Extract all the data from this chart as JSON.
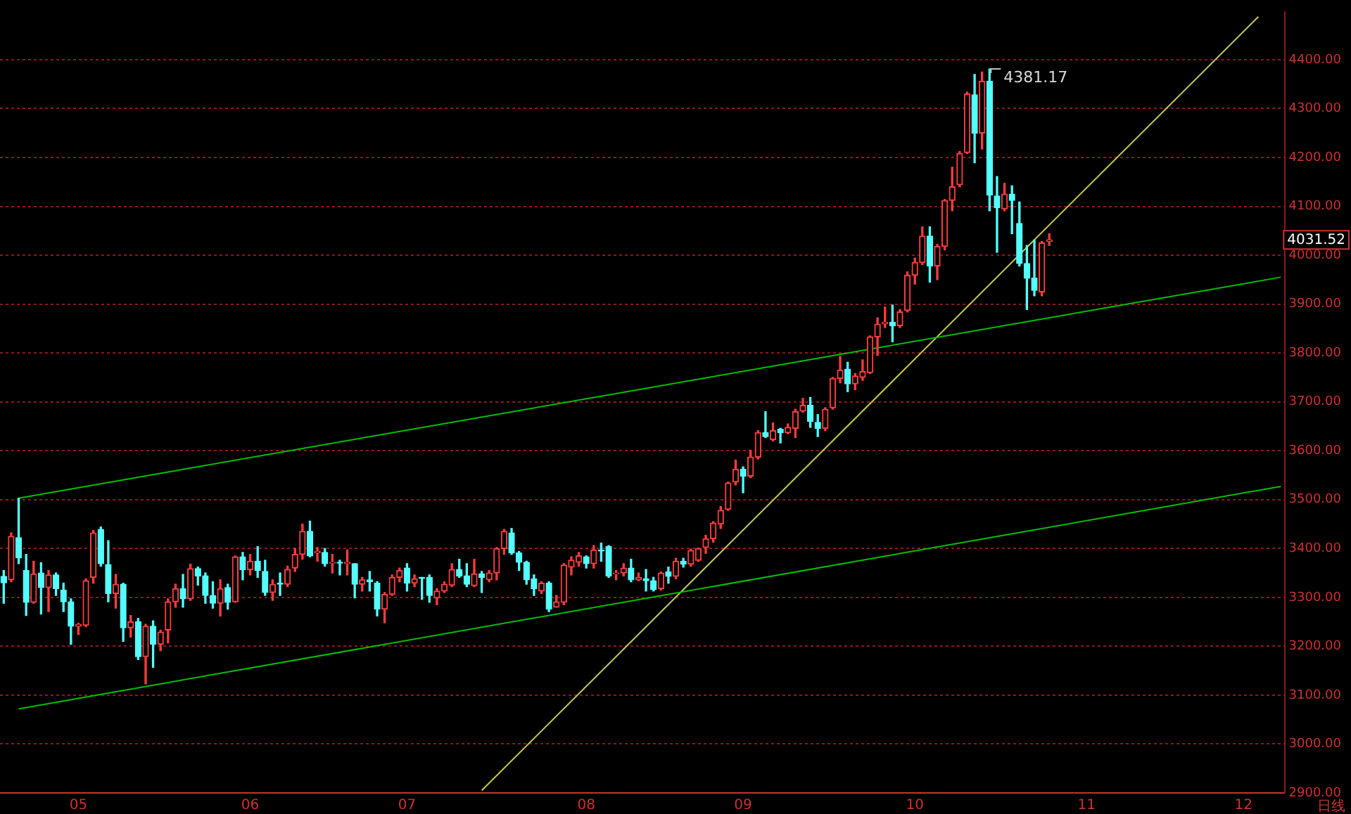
{
  "chart_data": {
    "type": "candlestick",
    "categories": [
      null,
      null,
      null,
      null,
      null,
      null,
      null,
      null,
      null,
      null,
      "05",
      null,
      null,
      null,
      null,
      null,
      null,
      null,
      null,
      null,
      null,
      null,
      null,
      null,
      null,
      null,
      null,
      null,
      null,
      null,
      null,
      null,
      null,
      "06",
      null,
      null,
      null,
      null,
      null,
      null,
      null,
      null,
      null,
      null,
      null,
      null,
      null,
      null,
      null,
      null,
      null,
      null,
      null,
      null,
      "07",
      null,
      null,
      null,
      null,
      null,
      null,
      null,
      null,
      null,
      null,
      null,
      null,
      null,
      null,
      null,
      null,
      null,
      null,
      null,
      null,
      null,
      null,
      null,
      "08",
      null,
      null,
      null,
      null,
      null,
      null,
      null,
      null,
      null,
      null,
      null,
      null,
      null,
      null,
      null,
      null,
      null,
      null,
      null,
      null,
      "09",
      null,
      null,
      null,
      null,
      null,
      null,
      null,
      null,
      null,
      null,
      null,
      null,
      null,
      null,
      null,
      null,
      null,
      null,
      null,
      null,
      null,
      null,
      "10",
      null,
      null,
      null,
      null,
      null,
      null,
      null,
      null,
      null,
      null,
      null,
      null,
      null,
      null,
      null,
      null,
      null,
      null,
      null,
      null,
      null,
      null,
      "11",
      null,
      null,
      null,
      null,
      null,
      null,
      null,
      null,
      null,
      null,
      null,
      null,
      null,
      null,
      null,
      null,
      null,
      null,
      null,
      null,
      "12",
      null,
      null,
      null,
      null,
      null
    ],
    "ohlc": [
      [
        3343,
        3355,
        3288,
        3330
      ],
      [
        3336,
        3432,
        3332,
        3425
      ],
      [
        3422,
        3503,
        3369,
        3381
      ],
      [
        3355,
        3388,
        3263,
        3290
      ],
      [
        3290,
        3374,
        3288,
        3348
      ],
      [
        3350,
        3371,
        3266,
        3320
      ],
      [
        3320,
        3355,
        3271,
        3346
      ],
      [
        3346,
        3350,
        3304,
        3318
      ],
      [
        3315,
        3329,
        3271,
        3291
      ],
      [
        3291,
        3297,
        3204,
        3241
      ],
      [
        3241,
        3247,
        3224,
        3245
      ],
      [
        3243,
        3338,
        3240,
        3334
      ],
      [
        3341,
        3437,
        3329,
        3432
      ],
      [
        3439,
        3444,
        3364,
        3369
      ],
      [
        3367,
        3416,
        3291,
        3308
      ],
      [
        3308,
        3347,
        3278,
        3327
      ],
      [
        3327,
        3329,
        3210,
        3238
      ],
      [
        3238,
        3263,
        3219,
        3250
      ],
      [
        3250,
        3257,
        3173,
        3179
      ],
      [
        3179,
        3245,
        3123,
        3241
      ],
      [
        3241,
        3252,
        3157,
        3204
      ],
      [
        3204,
        3233,
        3191,
        3229
      ],
      [
        3233,
        3297,
        3207,
        3291
      ],
      [
        3291,
        3327,
        3280,
        3318
      ],
      [
        3318,
        3347,
        3280,
        3297
      ],
      [
        3297,
        3368,
        3294,
        3359
      ],
      [
        3359,
        3362,
        3325,
        3344
      ],
      [
        3344,
        3350,
        3288,
        3304
      ],
      [
        3304,
        3332,
        3278,
        3288
      ],
      [
        3288,
        3336,
        3262,
        3318
      ],
      [
        3320,
        3327,
        3276,
        3290
      ],
      [
        3291,
        3385,
        3290,
        3383
      ],
      [
        3383,
        3392,
        3336,
        3357
      ],
      [
        3357,
        3388,
        3346,
        3374
      ],
      [
        3374,
        3404,
        3341,
        3355
      ],
      [
        3353,
        3376,
        3304,
        3310
      ],
      [
        3310,
        3336,
        3294,
        3327
      ],
      [
        3329,
        3350,
        3304,
        3327
      ],
      [
        3327,
        3364,
        3322,
        3357
      ],
      [
        3360,
        3400,
        3353,
        3388
      ],
      [
        3388,
        3450,
        3378,
        3435
      ],
      [
        3435,
        3456,
        3383,
        3385
      ],
      [
        3391,
        3402,
        3374,
        3394
      ],
      [
        3392,
        3400,
        3364,
        3369
      ],
      [
        3370,
        3388,
        3350,
        3372
      ],
      [
        3372,
        3376,
        3346,
        3370
      ],
      [
        3369,
        3397,
        3346,
        3372
      ],
      [
        3369,
        3369,
        3299,
        3327
      ],
      [
        3327,
        3341,
        3313,
        3336
      ],
      [
        3336,
        3353,
        3313,
        3332
      ],
      [
        3329,
        3332,
        3262,
        3276
      ],
      [
        3276,
        3310,
        3248,
        3306
      ],
      [
        3306,
        3346,
        3304,
        3341
      ],
      [
        3341,
        3360,
        3332,
        3355
      ],
      [
        3360,
        3369,
        3313,
        3329
      ],
      [
        3329,
        3346,
        3322,
        3338
      ],
      [
        3341,
        3341,
        3296,
        3339
      ],
      [
        3341,
        3346,
        3290,
        3304
      ],
      [
        3299,
        3318,
        3285,
        3313
      ],
      [
        3313,
        3332,
        3310,
        3327
      ],
      [
        3325,
        3369,
        3322,
        3357
      ],
      [
        3357,
        3378,
        3341,
        3344
      ],
      [
        3344,
        3369,
        3322,
        3327
      ],
      [
        3324,
        3378,
        3322,
        3348
      ],
      [
        3348,
        3353,
        3310,
        3341
      ],
      [
        3336,
        3355,
        3332,
        3350
      ],
      [
        3350,
        3402,
        3336,
        3400
      ],
      [
        3400,
        3439,
        3388,
        3435
      ],
      [
        3432,
        3441,
        3388,
        3391
      ],
      [
        3391,
        3394,
        3355,
        3372
      ],
      [
        3372,
        3374,
        3327,
        3336
      ],
      [
        3338,
        3346,
        3304,
        3318
      ],
      [
        3313,
        3332,
        3308,
        3329
      ],
      [
        3329,
        3332,
        3271,
        3276
      ],
      [
        3280,
        3304,
        3280,
        3291
      ],
      [
        3290,
        3369,
        3285,
        3366
      ],
      [
        3362,
        3383,
        3346,
        3376
      ],
      [
        3372,
        3392,
        3364,
        3385
      ],
      [
        3383,
        3385,
        3360,
        3369
      ],
      [
        3369,
        3406,
        3360,
        3397
      ],
      [
        3397,
        3411,
        3374,
        3395
      ],
      [
        3404,
        3406,
        3341,
        3344
      ],
      [
        3348,
        3355,
        3336,
        3350
      ],
      [
        3350,
        3369,
        3344,
        3360
      ],
      [
        3360,
        3378,
        3332,
        3336
      ],
      [
        3336,
        3350,
        3334,
        3341
      ],
      [
        3338,
        3357,
        3313,
        3334
      ],
      [
        3334,
        3341,
        3313,
        3316
      ],
      [
        3318,
        3352,
        3315,
        3350
      ],
      [
        3352,
        3362,
        3329,
        3343
      ],
      [
        3343,
        3380,
        3338,
        3374
      ],
      [
        3374,
        3380,
        3362,
        3368
      ],
      [
        3368,
        3399,
        3364,
        3396
      ],
      [
        3376,
        3401,
        3374,
        3400
      ],
      [
        3402,
        3427,
        3390,
        3420
      ],
      [
        3420,
        3455,
        3413,
        3452
      ],
      [
        3450,
        3486,
        3441,
        3478
      ],
      [
        3480,
        3536,
        3478,
        3534
      ],
      [
        3536,
        3581,
        3530,
        3562
      ],
      [
        3562,
        3567,
        3514,
        3548
      ],
      [
        3548,
        3601,
        3545,
        3587
      ],
      [
        3587,
        3641,
        3583,
        3637
      ],
      [
        3637,
        3680,
        3627,
        3629
      ],
      [
        3623,
        3657,
        3620,
        3641
      ],
      [
        3644,
        3646,
        3616,
        3637
      ],
      [
        3637,
        3655,
        3635,
        3648
      ],
      [
        3646,
        3685,
        3627,
        3680
      ],
      [
        3681,
        3707,
        3679,
        3693
      ],
      [
        3693,
        3709,
        3648,
        3660
      ],
      [
        3658,
        3674,
        3629,
        3646
      ],
      [
        3646,
        3688,
        3641,
        3685
      ],
      [
        3688,
        3750,
        3685,
        3748
      ],
      [
        3748,
        3793,
        3739,
        3765
      ],
      [
        3767,
        3781,
        3721,
        3737
      ],
      [
        3737,
        3758,
        3725,
        3753
      ],
      [
        3750,
        3786,
        3744,
        3762
      ],
      [
        3760,
        3835,
        3758,
        3833
      ],
      [
        3833,
        3872,
        3795,
        3859
      ],
      [
        3860,
        3894,
        3852,
        3863
      ],
      [
        3863,
        3898,
        3823,
        3856
      ],
      [
        3856,
        3889,
        3852,
        3884
      ],
      [
        3887,
        3966,
        3884,
        3959
      ],
      [
        3959,
        3994,
        3941,
        3985
      ],
      [
        3985,
        4058,
        3981,
        4039
      ],
      [
        4039,
        4058,
        3945,
        3978
      ],
      [
        3978,
        4022,
        3950,
        4018
      ],
      [
        4018,
        4114,
        4011,
        4112
      ],
      [
        4112,
        4180,
        4091,
        4140
      ],
      [
        4144,
        4212,
        4140,
        4208
      ],
      [
        4210,
        4334,
        4208,
        4330
      ],
      [
        4328,
        4370,
        4189,
        4250
      ],
      [
        4250,
        4375,
        4217,
        4356
      ],
      [
        4356,
        4381.17,
        4091,
        4123
      ],
      [
        4121,
        4161,
        4006,
        4097
      ],
      [
        4095,
        4147,
        4091,
        4125
      ],
      [
        4125,
        4142,
        4044,
        4112
      ],
      [
        4065,
        4109,
        3978,
        3983
      ],
      [
        3983,
        4020,
        3889,
        3953
      ],
      [
        3953,
        4031,
        3917,
        3928
      ],
      [
        3925,
        4028,
        3917,
        4025
      ],
      [
        4028,
        4044,
        4020,
        4031.52
      ],
      null,
      null,
      null,
      null,
      null,
      null,
      null,
      null,
      null,
      null,
      null,
      null,
      null,
      null,
      null,
      null,
      null,
      null,
      null,
      null,
      null,
      null,
      null,
      null,
      null,
      null,
      null,
      null,
      null,
      null,
      null
    ],
    "series": [
      {
        "type": "line",
        "color": "#00c000",
        "values": [
          null,
          null,
          3503,
          null,
          null,
          null,
          null,
          null,
          null,
          null,
          null,
          null,
          null,
          null,
          null,
          null,
          null,
          null,
          null,
          null,
          null,
          null,
          null,
          null,
          null,
          null,
          null,
          null,
          null,
          null,
          null,
          null,
          null,
          null,
          null,
          null,
          null,
          null,
          null,
          null,
          null,
          null,
          null,
          null,
          null,
          null,
          null,
          null,
          null,
          null,
          null,
          null,
          null,
          null,
          null,
          null,
          null,
          null,
          null,
          null,
          null,
          null,
          null,
          null,
          null,
          null,
          null,
          null,
          null,
          null,
          null,
          null,
          null,
          null,
          null,
          null,
          null,
          null,
          null,
          null,
          null,
          null,
          null,
          null,
          null,
          null,
          null,
          null,
          null,
          null,
          null,
          null,
          null,
          null,
          null,
          null,
          null,
          null,
          null,
          null,
          null,
          null,
          null,
          null,
          null,
          null,
          null,
          null,
          null,
          null,
          null,
          null,
          null,
          null,
          null,
          null,
          null,
          null,
          null,
          null,
          null,
          null,
          null,
          null,
          null,
          null,
          null,
          null,
          null,
          null,
          null,
          null,
          null,
          null,
          null,
          null,
          null,
          null,
          null,
          null,
          null,
          null,
          null,
          null,
          null,
          null,
          null,
          null,
          null,
          null,
          null,
          null,
          null,
          null,
          null,
          null,
          null,
          null,
          null,
          null,
          null,
          null,
          null,
          null,
          null,
          null,
          null,
          null,
          null,
          null,
          null,
          3955
        ]
      },
      {
        "type": "line",
        "color": "#00c000",
        "values": [
          null,
          null,
          3072,
          null,
          null,
          null,
          null,
          null,
          null,
          null,
          null,
          null,
          null,
          null,
          null,
          null,
          null,
          null,
          null,
          null,
          null,
          null,
          null,
          null,
          null,
          null,
          null,
          null,
          null,
          null,
          null,
          null,
          null,
          null,
          null,
          null,
          null,
          null,
          null,
          null,
          null,
          null,
          null,
          null,
          null,
          null,
          null,
          null,
          null,
          null,
          null,
          null,
          null,
          null,
          null,
          null,
          null,
          null,
          null,
          null,
          null,
          null,
          null,
          null,
          null,
          null,
          null,
          null,
          null,
          null,
          null,
          null,
          null,
          null,
          null,
          null,
          null,
          null,
          null,
          null,
          null,
          null,
          null,
          null,
          null,
          null,
          null,
          null,
          null,
          null,
          null,
          null,
          null,
          null,
          null,
          null,
          null,
          null,
          null,
          null,
          null,
          null,
          null,
          null,
          null,
          null,
          null,
          null,
          null,
          null,
          null,
          null,
          null,
          null,
          null,
          null,
          null,
          null,
          null,
          null,
          null,
          null,
          null,
          null,
          null,
          null,
          null,
          null,
          null,
          null,
          null,
          null,
          null,
          null,
          null,
          null,
          null,
          null,
          null,
          null,
          null,
          null,
          null,
          null,
          null,
          null,
          null,
          null,
          null,
          null,
          null,
          null,
          null,
          null,
          null,
          null,
          null,
          null,
          null,
          null,
          null,
          null,
          null,
          null,
          null,
          null,
          null,
          null,
          null,
          null,
          null,
          3527
        ]
      },
      {
        "type": "line",
        "color": "#c8c850",
        "values": [
          null,
          null,
          null,
          null,
          null,
          null,
          null,
          null,
          null,
          null,
          null,
          null,
          null,
          null,
          null,
          null,
          null,
          null,
          null,
          null,
          null,
          null,
          null,
          null,
          null,
          null,
          null,
          null,
          null,
          null,
          null,
          null,
          null,
          null,
          null,
          null,
          null,
          null,
          null,
          null,
          null,
          null,
          null,
          null,
          null,
          null,
          null,
          null,
          null,
          null,
          null,
          null,
          null,
          null,
          null,
          null,
          null,
          null,
          null,
          null,
          null,
          null,
          null,
          null,
          2905,
          null,
          null,
          null,
          null,
          null,
          null,
          null,
          null,
          null,
          null,
          null,
          null,
          null,
          null,
          null,
          null,
          null,
          null,
          null,
          null,
          null,
          null,
          null,
          null,
          null,
          null,
          null,
          null,
          null,
          null,
          null,
          null,
          null,
          null,
          null,
          null,
          null,
          null,
          null,
          null,
          null,
          null,
          null,
          null,
          null,
          null,
          null,
          null,
          null,
          null,
          null,
          null,
          null,
          null,
          null,
          null,
          null,
          null,
          null,
          null,
          null,
          null,
          null,
          null,
          null,
          null,
          null,
          null,
          null,
          null,
          null,
          null,
          null,
          null,
          null,
          null,
          null,
          null,
          null,
          null,
          null,
          null,
          null,
          null,
          null,
          null,
          null,
          null,
          null,
          null,
          null,
          null,
          null,
          null,
          null,
          null,
          null,
          null,
          null,
          null,
          null,
          null,
          null,
          4488,
          null,
          null,
          null
        ]
      }
    ],
    "ylim": [
      2900,
      4498
    ],
    "yticks": [
      {
        "value": 2900,
        "label": "2900.00"
      },
      {
        "value": 3000,
        "label": "3000.00"
      },
      {
        "value": 3100,
        "label": "3100.00"
      },
      {
        "value": 3200,
        "label": "3200.00"
      },
      {
        "value": 3300,
        "label": "3300.00"
      },
      {
        "value": 3400,
        "label": "3400.00"
      },
      {
        "value": 3500,
        "label": "3500.00"
      },
      {
        "value": 3600,
        "label": "3600.00"
      },
      {
        "value": 3700,
        "label": "3700.00"
      },
      {
        "value": 3800,
        "label": "3800.00"
      },
      {
        "value": 3900,
        "label": "3900.00"
      },
      {
        "value": 4000,
        "label": "4000.00"
      },
      {
        "value": 4100,
        "label": "4100.00"
      },
      {
        "value": 4200,
        "label": "4200.00"
      },
      {
        "value": 4300,
        "label": "4300.00"
      },
      {
        "value": 4400,
        "label": "4400.00"
      }
    ],
    "grid": "y",
    "legend": false,
    "annotations": [
      "4381.17",
      "4031.52",
      "日线"
    ]
  }
}
